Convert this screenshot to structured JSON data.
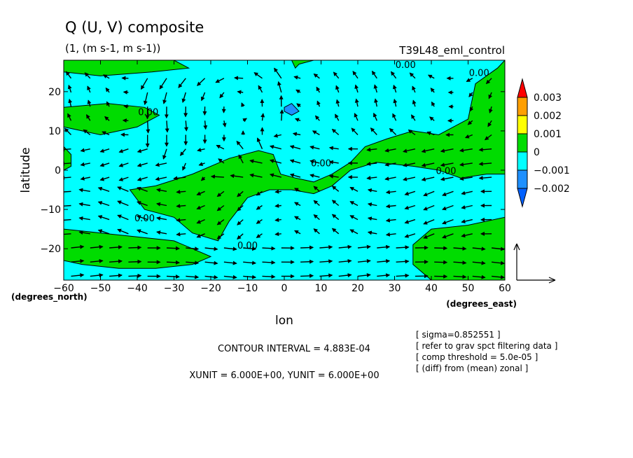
{
  "chart_data": {
    "type": "contour-vector",
    "title": "Q (U, V) composite",
    "subtitle": "(1, (m s-1, m s-1))",
    "experiment": "T39L48_eml_control",
    "xlabel": "lon",
    "ylabel": "latitude",
    "x_unit_label": "(degrees_east)",
    "y_unit_label": "(degrees_north)",
    "xlim": [
      -60,
      60
    ],
    "ylim": [
      -28,
      28
    ],
    "x_ticks": [
      -60,
      -50,
      -40,
      -30,
      -20,
      -10,
      0,
      10,
      20,
      30,
      40,
      50,
      60
    ],
    "y_ticks": [
      -20,
      -10,
      0,
      10,
      20
    ],
    "contour_labels": [
      {
        "text": "0.00",
        "lon": 33,
        "lat": 26
      },
      {
        "text": "0.00",
        "lon": 53,
        "lat": 24
      },
      {
        "text": "0.00",
        "lon": -37,
        "lat": 14
      },
      {
        "text": "0.00",
        "lon": 10,
        "lat": 1
      },
      {
        "text": "0.00",
        "lon": 44,
        "lat": -1
      },
      {
        "text": "0.00",
        "lon": -38,
        "lat": -13
      },
      {
        "text": "0.00",
        "lon": -10,
        "lat": -20
      }
    ],
    "colorbar": {
      "levels": [
        "0.003",
        "0.002",
        "0.001",
        "0",
        "-0.001",
        "-0.002"
      ],
      "colors": [
        "#ff0000",
        "#ff9f00",
        "#ffff00",
        "#00dc00",
        "#00ffff",
        "#1e90ff",
        "#0060ff"
      ]
    },
    "regions_positive": [
      [
        [
          -60,
          28
        ],
        [
          -30,
          28
        ],
        [
          -26,
          26
        ],
        [
          -36,
          25
        ],
        [
          -50,
          24
        ],
        [
          -60,
          25
        ]
      ],
      [
        [
          -60,
          16
        ],
        [
          -48,
          17
        ],
        [
          -38,
          16
        ],
        [
          -34,
          14
        ],
        [
          -40,
          11
        ],
        [
          -50,
          9
        ],
        [
          -60,
          11
        ]
      ],
      [
        [
          -60,
          6
        ],
        [
          -58,
          4
        ],
        [
          -58,
          1
        ],
        [
          -60,
          0
        ]
      ],
      [
        [
          -42,
          -5
        ],
        [
          -35,
          -4
        ],
        [
          -25,
          -1
        ],
        [
          -15,
          3
        ],
        [
          -7,
          5
        ],
        [
          -3,
          4
        ],
        [
          -1,
          -1
        ],
        [
          3,
          -2
        ],
        [
          8,
          -3
        ],
        [
          13,
          -1
        ],
        [
          18,
          2
        ],
        [
          22,
          6
        ],
        [
          28,
          8
        ],
        [
          35,
          10
        ],
        [
          42,
          9
        ],
        [
          50,
          13
        ],
        [
          52,
          22
        ],
        [
          58,
          26
        ],
        [
          60,
          28
        ],
        [
          60,
          -1
        ],
        [
          55,
          -1
        ],
        [
          48,
          -2
        ],
        [
          42,
          0
        ],
        [
          35,
          1
        ],
        [
          25,
          2
        ],
        [
          18,
          0
        ],
        [
          13,
          -4
        ],
        [
          8,
          -6
        ],
        [
          2,
          -5
        ],
        [
          -4,
          -5
        ],
        [
          -10,
          -7
        ],
        [
          -15,
          -13
        ],
        [
          -18,
          -18
        ],
        [
          -25,
          -16
        ],
        [
          -30,
          -12
        ],
        [
          -38,
          -10
        ]
      ],
      [
        [
          3,
          26
        ],
        [
          4,
          27
        ],
        [
          8,
          28
        ],
        [
          2,
          28
        ]
      ],
      [
        [
          -60,
          -15
        ],
        [
          -50,
          -16
        ],
        [
          -40,
          -17
        ],
        [
          -30,
          -18
        ],
        [
          -25,
          -20
        ],
        [
          -20,
          -22
        ],
        [
          -25,
          -24
        ],
        [
          -35,
          -25
        ],
        [
          -45,
          -25
        ],
        [
          -55,
          -24
        ],
        [
          -60,
          -23
        ]
      ],
      [
        [
          35,
          -19
        ],
        [
          40,
          -15
        ],
        [
          50,
          -14
        ],
        [
          60,
          -12
        ],
        [
          60,
          -28
        ],
        [
          40,
          -28
        ],
        [
          35,
          -24
        ]
      ]
    ],
    "regions_negative": [
      [
        [
          0,
          16
        ],
        [
          2,
          17
        ],
        [
          4,
          15
        ],
        [
          2,
          14
        ],
        [
          0,
          15
        ]
      ]
    ],
    "vector_reference": {
      "u": 6.0,
      "v": 6.0
    },
    "annotations": {
      "contour_interval": "CONTOUR INTERVAL = 4.883E-04",
      "unit_vectors": "XUNIT = 6.000E+00, YUNIT = 6.000E+00",
      "info_lines": [
        "[ sigma=0.852551 ]",
        "[ refer to grav spct filtering data ]",
        "[ comp threshold = 5.0e-05 ]",
        "[ (diff) from (mean) zonal ]"
      ]
    }
  }
}
